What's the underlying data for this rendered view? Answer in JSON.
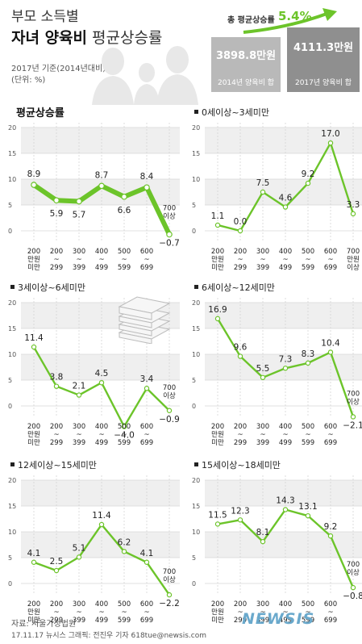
{
  "header": {
    "title_line1": "부모 소득별",
    "title_line2_bold": "자녀 양육비",
    "title_line2_rest": "평균상승률",
    "year_note": "2017년 기준(2014년대비)",
    "unit_note": "(단위: %)",
    "total_label": "총 평균상승률",
    "total_value": "5.4%",
    "box2014_amount": "3898.8만원",
    "box2014_caption": "2014년 양육비 합",
    "box2017_amount": "4111.3만원",
    "box2017_caption": "2017년 양육비 합"
  },
  "footer": {
    "source": "자료: 서울가정법원",
    "credit": "17.11.17 뉴시스 그래픽: 전진우 기자 618tue@newsis.com",
    "logo": "NEWSIS"
  },
  "colors": {
    "green": "#6cc42a",
    "box2014": "#b9b9b9",
    "box2017": "#8f8f8f",
    "band": "#efefef"
  },
  "chart_data": [
    {
      "type": "line",
      "title": "평균상승률",
      "categories": [
        "200 만원 미만",
        "200 ~ 299",
        "300 ~ 399",
        "400 ~ 499",
        "500 ~ 599",
        "600 ~ 699",
        "700 이상"
      ],
      "values": [
        8.9,
        5.9,
        5.7,
        8.7,
        6.6,
        8.4,
        -0.7
      ],
      "yticks": [
        20,
        15,
        10,
        5,
        0
      ],
      "ylim": [
        -2,
        20
      ]
    },
    {
      "type": "line",
      "title": "0세이상~3세미만",
      "categories": [
        "200 만원 미만",
        "200 ~ 299",
        "300 ~ 399",
        "400 ~ 499",
        "500 ~ 599",
        "600 ~ 699",
        "700 만원 이상"
      ],
      "values": [
        1.1,
        0.0,
        7.5,
        4.6,
        9.2,
        17.0,
        3.3
      ],
      "yticks": [
        20,
        15,
        10,
        5,
        0
      ],
      "ylim": [
        0,
        20
      ]
    },
    {
      "type": "line",
      "title": "3세이상~6세미만",
      "categories": [
        "200 만원 미만",
        "200 ~ 299",
        "300 ~ 399",
        "400 ~ 499",
        "500 ~ 599",
        "600 ~ 699",
        "700 이상"
      ],
      "values": [
        11.4,
        3.8,
        2.1,
        4.5,
        -4.0,
        3.4,
        -0.9
      ],
      "yticks": [
        20,
        15,
        10,
        5,
        0
      ],
      "ylim": [
        -5,
        20
      ]
    },
    {
      "type": "line",
      "title": "6세이상~12세미만",
      "categories": [
        "200 만원 미만",
        "200 ~ 299",
        "300 ~ 399",
        "400 ~ 499",
        "500 ~ 599",
        "600 ~ 699",
        "700 이상"
      ],
      "values": [
        16.9,
        9.6,
        5.5,
        7.3,
        8.3,
        10.4,
        -2.1
      ],
      "yticks": [
        20,
        15,
        10,
        5,
        0
      ],
      "ylim": [
        -2,
        20
      ]
    },
    {
      "type": "line",
      "title": "12세이상~15세미만",
      "categories": [
        "200 만원 미만",
        "200 ~ 299",
        "300 ~ 399",
        "400 ~ 499",
        "500 ~ 599",
        "600 ~ 699",
        "700 이상"
      ],
      "values": [
        4.1,
        2.5,
        5.1,
        11.4,
        6.2,
        4.1,
        -2.2
      ],
      "yticks": [
        20,
        15,
        10,
        5,
        0
      ],
      "ylim": [
        -2,
        20
      ]
    },
    {
      "type": "line",
      "title": "15세이상~18세미만",
      "categories": [
        "200 만원 미만",
        "200 ~ 299",
        "300 ~ 399",
        "400 ~ 499",
        "500 ~ 599",
        "600 ~ 699",
        "700 이상"
      ],
      "values": [
        11.5,
        12.3,
        8.1,
        14.3,
        13.1,
        9.2,
        -0.8
      ],
      "yticks": [
        20,
        15,
        10,
        5,
        0
      ],
      "ylim": [
        -2,
        20
      ]
    }
  ]
}
